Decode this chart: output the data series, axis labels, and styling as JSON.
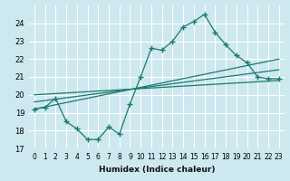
{
  "xlabel": "Humidex (Indice chaleur)",
  "ylabel": "",
  "bg_color": "#cde8ef",
  "grid_color": "#ffffff",
  "line_color": "#1a7a6e",
  "xlim": [
    -0.5,
    23.5
  ],
  "ylim": [
    17,
    25
  ],
  "xticks": [
    0,
    1,
    2,
    3,
    4,
    5,
    6,
    7,
    8,
    9,
    10,
    11,
    12,
    13,
    14,
    15,
    16,
    17,
    18,
    19,
    20,
    21,
    22,
    23
  ],
  "yticks": [
    17,
    18,
    19,
    20,
    21,
    22,
    23,
    24
  ],
  "main_series_x": [
    0,
    1,
    2,
    3,
    4,
    5,
    6,
    7,
    8,
    9,
    10,
    11,
    12,
    13,
    14,
    15,
    16,
    17,
    18,
    19,
    20,
    21,
    22,
    23
  ],
  "main_series_y": [
    19.2,
    19.3,
    19.8,
    18.5,
    18.1,
    17.5,
    17.5,
    18.2,
    17.8,
    19.5,
    21.0,
    22.6,
    22.5,
    23.0,
    23.8,
    24.1,
    24.5,
    23.5,
    22.8,
    22.2,
    21.8,
    21.0,
    20.9,
    20.9
  ],
  "reg_line1_x": [
    0,
    23
  ],
  "reg_line1_y": [
    19.2,
    22.0
  ],
  "reg_line2_x": [
    0,
    23
  ],
  "reg_line2_y": [
    19.6,
    21.4
  ],
  "reg_line3_x": [
    0,
    23
  ],
  "reg_line3_y": [
    20.0,
    20.8
  ]
}
